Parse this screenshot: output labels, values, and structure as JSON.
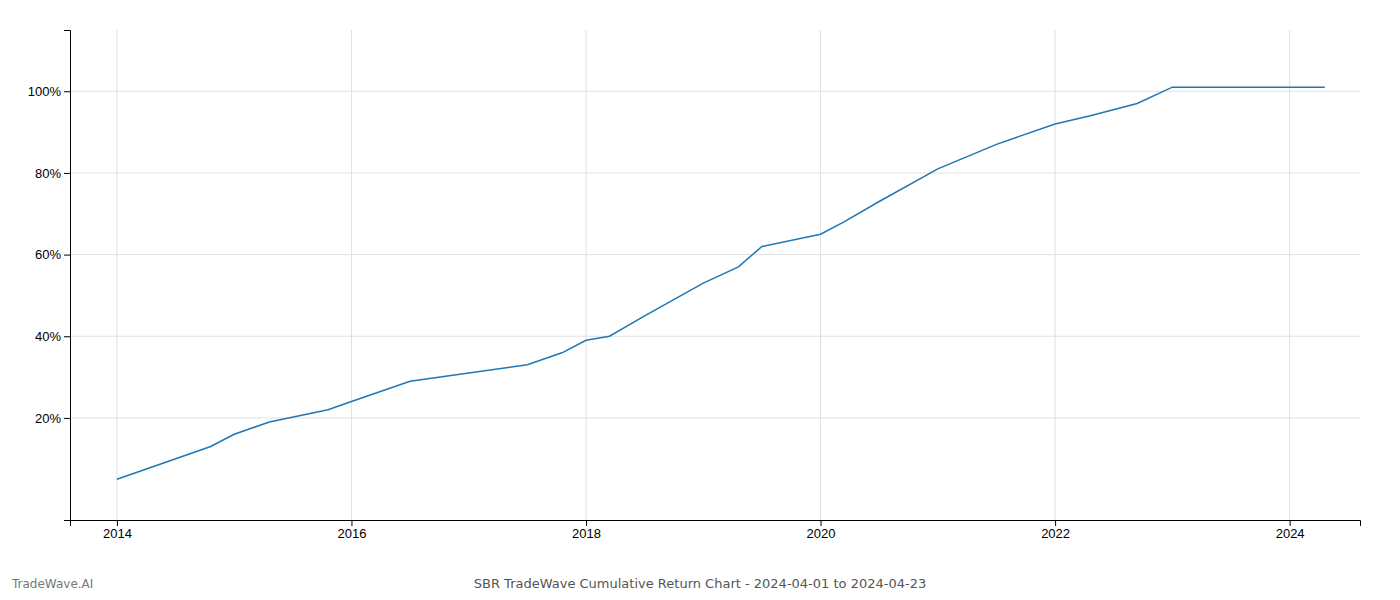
{
  "chart_data": {
    "type": "line",
    "title": "SBR TradeWave Cumulative Return Chart - 2024-04-01 to 2024-04-23",
    "annotations": [
      "TradeWave.AI"
    ],
    "x": [
      2014.0,
      2014.3,
      2014.8,
      2015.0,
      2015.3,
      2015.8,
      2016.0,
      2016.5,
      2017.0,
      2017.5,
      2017.8,
      2018.0,
      2018.2,
      2018.5,
      2019.0,
      2019.3,
      2019.5,
      2020.0,
      2020.2,
      2020.5,
      2021.0,
      2021.5,
      2022.0,
      2022.3,
      2022.7,
      2023.0,
      2023.3,
      2024.0,
      2024.3
    ],
    "values": [
      5,
      8,
      13,
      16,
      19,
      22,
      24,
      29,
      31,
      33,
      36,
      39,
      40,
      45,
      53,
      57,
      62,
      65,
      68,
      73,
      81,
      87,
      92,
      94,
      97,
      101,
      101,
      101,
      101
    ],
    "xlim": [
      2013.6,
      2024.6
    ],
    "ylim": [
      -5,
      115
    ],
    "xticks": [
      2014,
      2016,
      2018,
      2020,
      2022,
      2024
    ],
    "yticks": [
      {
        "value": 20,
        "label": "20%"
      },
      {
        "value": 40,
        "label": "40%"
      },
      {
        "value": 60,
        "label": "60%"
      },
      {
        "value": 80,
        "label": "80%"
      },
      {
        "value": 100,
        "label": "100%"
      }
    ],
    "grid": true
  }
}
